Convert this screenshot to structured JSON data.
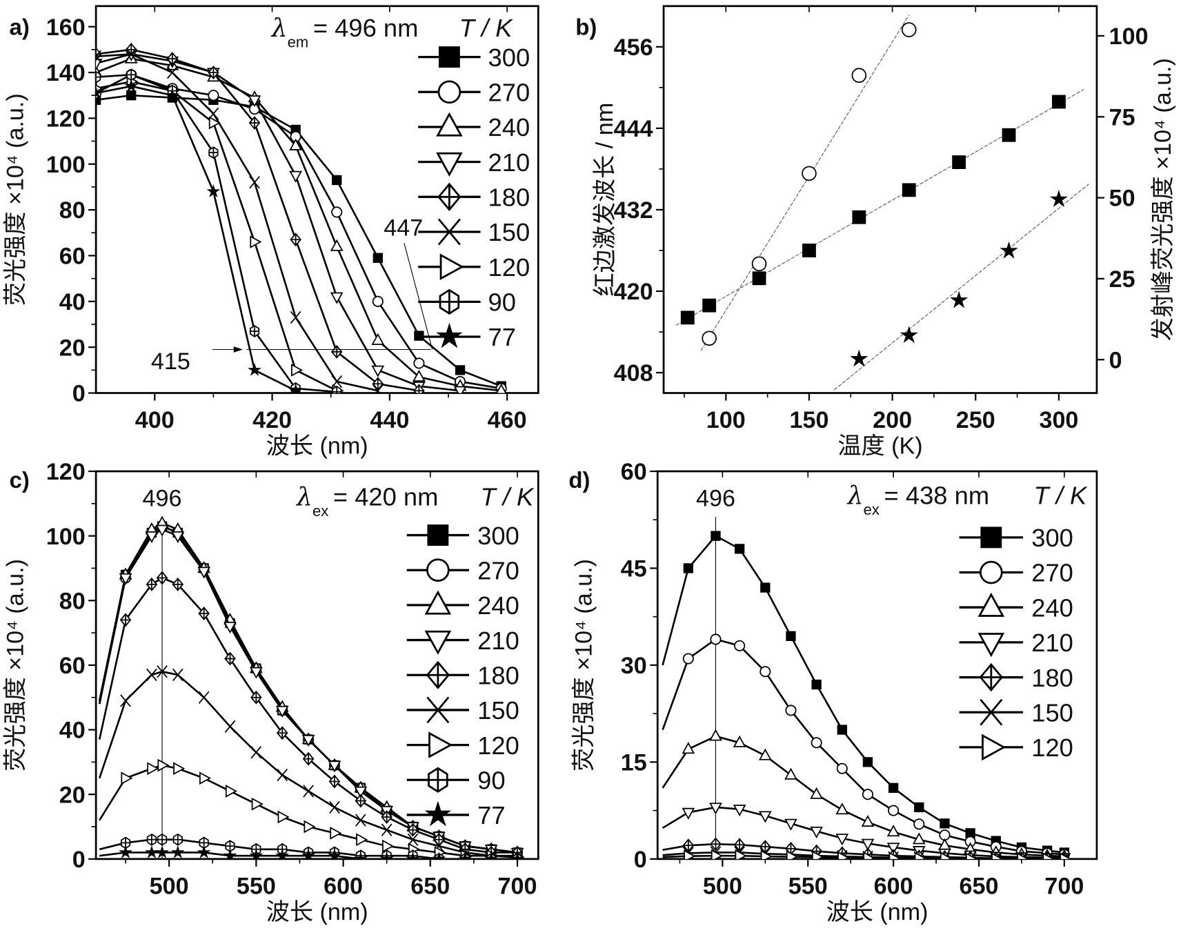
{
  "chart_data": [
    {
      "panel": "a)",
      "type": "line",
      "xlabel": "波长 (nm)",
      "ylabel": "荧光强度 ×10⁴ (a.u.)",
      "xlim": [
        390,
        465.3
      ],
      "ylim": [
        0,
        169
      ],
      "xticks": [
        400,
        420,
        440,
        460
      ],
      "yticks": [
        0,
        20,
        40,
        60,
        80,
        100,
        120,
        140,
        160
      ],
      "legend_header": {
        "symbol": "λ",
        "sub": "em",
        "value": "= 496 nm",
        "title": "T / K"
      },
      "legend_placement": "top-right",
      "annotations": [
        {
          "text": "447",
          "x": 447,
          "y": 19
        },
        {
          "text": "415",
          "x": 415,
          "y": 19
        }
      ],
      "series": [
        {
          "name": "300",
          "marker": "square",
          "x": [
            390,
            396,
            403,
            410,
            417,
            424,
            431,
            438,
            445,
            452,
            459
          ],
          "y": [
            128,
            130,
            129,
            128,
            125,
            115,
            93,
            59,
            25,
            10,
            3
          ]
        },
        {
          "name": "270",
          "marker": "circle",
          "x": [
            390,
            396,
            403,
            410,
            417,
            424,
            431,
            438,
            445,
            452,
            459
          ],
          "y": [
            131,
            139,
            133,
            130,
            124,
            112,
            79,
            40,
            13,
            5,
            2
          ]
        },
        {
          "name": "240",
          "marker": "tri-up",
          "x": [
            390,
            396,
            403,
            410,
            417,
            424,
            431,
            438,
            445,
            452,
            459
          ],
          "y": [
            140,
            146,
            143,
            138,
            129,
            108,
            64,
            23,
            7,
            3,
            1
          ]
        },
        {
          "name": "210",
          "marker": "tri-down",
          "x": [
            390,
            396,
            403,
            410,
            417,
            424,
            431,
            438,
            445,
            452
          ],
          "y": [
            144,
            148,
            145,
            140,
            128,
            95,
            42,
            10,
            3,
            1
          ]
        },
        {
          "name": "180",
          "marker": "diamond-cross",
          "x": [
            390,
            396,
            403,
            410,
            417,
            424,
            431,
            438,
            445
          ],
          "y": [
            148,
            150,
            146,
            140,
            118,
            67,
            18,
            4,
            1
          ]
        },
        {
          "name": "150",
          "marker": "x-cross",
          "x": [
            390,
            396,
            403,
            410,
            417,
            424,
            431,
            438
          ],
          "y": [
            147,
            148,
            140,
            122,
            92,
            33,
            5,
            1
          ]
        },
        {
          "name": "120",
          "marker": "tri-right",
          "x": [
            390,
            396,
            403,
            410,
            417,
            424,
            431
          ],
          "y": [
            133,
            136,
            132,
            118,
            66,
            10,
            1
          ]
        },
        {
          "name": "90",
          "marker": "hexagon-cross",
          "x": [
            390,
            396,
            403,
            410,
            417,
            424,
            431
          ],
          "y": [
            138,
            139,
            132,
            105,
            27,
            2,
            0.5
          ]
        },
        {
          "name": "77",
          "marker": "star",
          "x": [
            390,
            396,
            403,
            410,
            417,
            424
          ],
          "y": [
            131,
            134,
            130,
            88,
            10,
            1
          ]
        }
      ]
    },
    {
      "panel": "b)",
      "type": "scatter",
      "xlabel": "温度 (K)",
      "ylabel": "红边激发波长 / nm",
      "ylabel_right": "发射峰荧光强度 ×10⁴ (a.u.)",
      "xlim": [
        62.6,
        322.8
      ],
      "ylim": [
        405,
        462
      ],
      "ylim_right": [
        -10.3,
        109.2
      ],
      "xticks": [
        100,
        150,
        200,
        250,
        300
      ],
      "yticks": [
        408,
        420,
        432,
        444,
        456
      ],
      "yticks_right": [
        0,
        25,
        50,
        75,
        100
      ],
      "series": [
        {
          "name": "red-edge excitation wavelength",
          "marker": "square",
          "axis": "left",
          "fit": true,
          "x": [
            77,
            90,
            120,
            150,
            180,
            210,
            240,
            270,
            300
          ],
          "y": [
            416.1,
            417.9,
            421.9,
            426,
            430.9,
            434.9,
            439,
            443,
            447.9
          ]
        },
        {
          "name": "emission intensity (circles)",
          "marker": "circle",
          "axis": "right",
          "fit": true,
          "x": [
            90,
            120,
            150,
            180,
            210
          ],
          "y": [
            6.6,
            29.6,
            57.5,
            87.8,
            101.9
          ]
        },
        {
          "name": "emission intensity (stars)",
          "marker": "star",
          "axis": "right",
          "fit": true,
          "x": [
            180,
            210,
            240,
            270,
            300
          ],
          "y": [
            0.2,
            7.5,
            18.3,
            33.6,
            49.5
          ]
        }
      ]
    },
    {
      "panel": "c)",
      "type": "line",
      "xlabel": "波长 (nm)",
      "ylabel": "荧光强度 ×10⁴ (a.u.)",
      "xlim": [
        458,
        712
      ],
      "ylim": [
        0,
        120
      ],
      "xticks": [
        500,
        550,
        600,
        650,
        700
      ],
      "yticks": [
        0,
        20,
        40,
        60,
        80,
        100,
        120
      ],
      "peak_label": "496",
      "peak_x": 496,
      "legend_header": {
        "symbol": "λ",
        "sub": "ex",
        "value": "= 420 nm",
        "title": "T / K"
      },
      "legend_placement": "top-right",
      "x": [
        460,
        475,
        490,
        496,
        505,
        520,
        535,
        550,
        565,
        580,
        595,
        610,
        625,
        640,
        655,
        670,
        685,
        700
      ],
      "series": [
        {
          "name": "300",
          "marker": "square",
          "y": [
            48,
            88,
            101,
            103,
            101,
            90,
            73,
            59,
            46,
            37,
            29,
            22,
            15,
            10,
            7,
            4,
            3,
            2
          ]
        },
        {
          "name": "270",
          "marker": "circle",
          "y": [
            48,
            87,
            101,
            103,
            101,
            90,
            73,
            59,
            46,
            37,
            29,
            22,
            15,
            10,
            7,
            4,
            3,
            2
          ]
        },
        {
          "name": "240",
          "marker": "tri-up",
          "y": [
            49,
            88,
            102,
            104,
            102,
            90,
            74,
            59,
            47,
            37,
            29,
            22,
            16,
            10,
            7,
            4,
            3,
            2
          ]
        },
        {
          "name": "210",
          "marker": "tri-down",
          "y": [
            48,
            87,
            100,
            102,
            100,
            89,
            72,
            58,
            46,
            37,
            29,
            21,
            15,
            10,
            7,
            4,
            3,
            2
          ]
        },
        {
          "name": "180",
          "marker": "diamond-cross",
          "y": [
            37,
            74,
            85,
            87,
            85,
            76,
            62,
            50,
            39,
            31,
            24,
            18,
            13,
            9,
            6,
            3,
            2,
            2
          ]
        },
        {
          "name": "150",
          "marker": "x-cross",
          "y": [
            25,
            49,
            57,
            58,
            57,
            50,
            41,
            33,
            26,
            21,
            16,
            12,
            9,
            6,
            4,
            2,
            1,
            1
          ]
        },
        {
          "name": "120",
          "marker": "tri-right",
          "y": [
            12,
            25,
            28,
            29,
            28,
            25,
            21,
            17,
            13,
            10,
            8,
            6,
            4,
            3,
            2,
            1,
            1,
            0.5
          ]
        },
        {
          "name": "90",
          "marker": "hexagon-cross",
          "y": [
            3,
            5,
            6,
            6,
            6,
            5,
            4,
            3,
            3,
            2,
            2,
            1,
            1,
            1,
            0,
            0,
            0,
            0
          ]
        },
        {
          "name": "77",
          "marker": "star",
          "y": [
            1,
            2,
            2,
            2,
            2,
            2,
            1,
            1,
            1,
            1,
            1,
            0,
            0,
            0,
            0,
            0,
            0,
            0
          ]
        }
      ]
    },
    {
      "panel": "d)",
      "type": "line",
      "xlabel": "波长 (nm)",
      "ylabel": "荧光强度 ×10⁴ (a.u.)",
      "xlim": [
        462,
        719
      ],
      "ylim": [
        0,
        60
      ],
      "xticks": [
        500,
        550,
        600,
        650,
        700
      ],
      "yticks": [
        0,
        15,
        30,
        45,
        60
      ],
      "peak_label": "496",
      "peak_x": 496,
      "legend_header": {
        "symbol": "λ",
        "sub": "ex",
        "value": "= 438 nm",
        "title": "T / K"
      },
      "legend_placement": "top-right",
      "x": [
        465,
        480,
        496,
        510,
        525,
        540,
        555,
        570,
        585,
        600,
        615,
        630,
        645,
        660,
        675,
        690,
        700
      ],
      "series": [
        {
          "name": "300",
          "marker": "square",
          "y": [
            30,
            45,
            50,
            48,
            42,
            34.5,
            27,
            20,
            15,
            11,
            8,
            5.5,
            4,
            2.8,
            1.8,
            1.3,
            1
          ]
        },
        {
          "name": "270",
          "marker": "circle",
          "y": [
            20,
            31,
            34,
            33,
            29,
            23,
            18,
            14,
            10,
            7.5,
            5.4,
            3.7,
            2.7,
            1.9,
            1.2,
            0.9,
            0.7
          ]
        },
        {
          "name": "240",
          "marker": "tri-up",
          "y": [
            11,
            17,
            19,
            18,
            16,
            13,
            10,
            7.6,
            5.7,
            4.2,
            3,
            2.1,
            1.5,
            1,
            0.7,
            0.5,
            0.4
          ]
        },
        {
          "name": "210",
          "marker": "tri-down",
          "y": [
            4.8,
            7.2,
            8,
            7.7,
            6.7,
            5.5,
            4.3,
            3.2,
            2.4,
            1.8,
            1.3,
            0.9,
            0.6,
            0.4,
            0.3,
            0.2,
            0.2
          ]
        },
        {
          "name": "180",
          "marker": "diamond-cross",
          "y": [
            1.4,
            2.1,
            2.3,
            2.2,
            1.9,
            1.6,
            1.2,
            0.9,
            0.7,
            0.5,
            0.4,
            0.3,
            0.2,
            0.1,
            0.1,
            0.1,
            0
          ]
        },
        {
          "name": "150",
          "marker": "x-cross",
          "y": [
            0.6,
            0.9,
            1,
            1,
            0.8,
            0.7,
            0.5,
            0.4,
            0.3,
            0.2,
            0.2,
            0.1,
            0.1,
            0.1,
            0,
            0,
            0
          ]
        },
        {
          "name": "120",
          "marker": "tri-right",
          "y": [
            0.3,
            0.45,
            0.5,
            0.5,
            0.4,
            0.35,
            0.3,
            0.2,
            0.15,
            0.1,
            0.1,
            0.1,
            0,
            0,
            0,
            0,
            0
          ]
        }
      ]
    }
  ]
}
